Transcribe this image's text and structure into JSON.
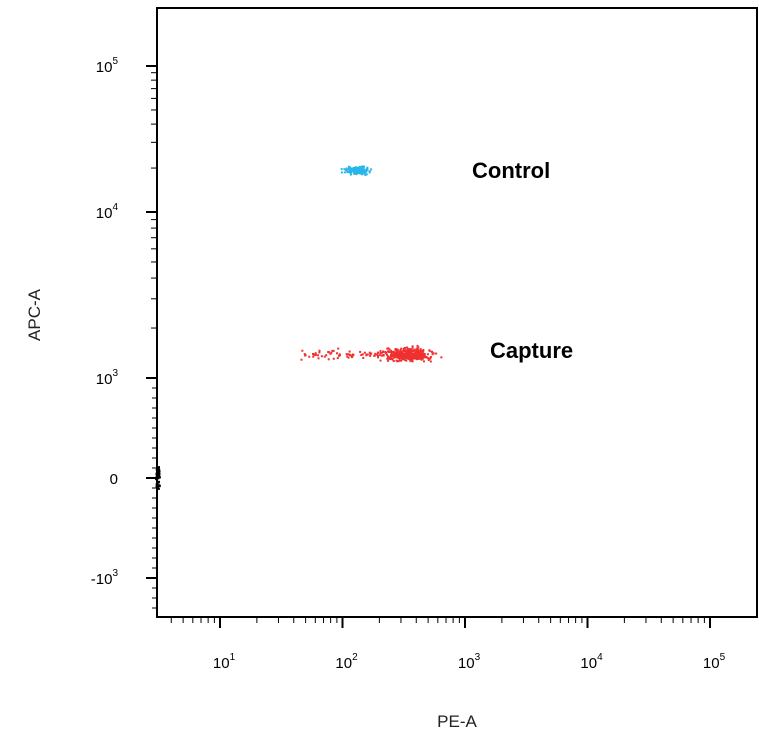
{
  "chart_data": {
    "type": "scatter",
    "title": "",
    "xlabel": "PE-A",
    "ylabel": "APC-A",
    "x_scale": "biexponential",
    "y_scale": "biexponential",
    "x_ticks": [
      {
        "base": "10",
        "exp": "1",
        "value": 10
      },
      {
        "base": "10",
        "exp": "2",
        "value": 100
      },
      {
        "base": "10",
        "exp": "3",
        "value": 1000
      },
      {
        "base": "10",
        "exp": "4",
        "value": 10000
      },
      {
        "base": "10",
        "exp": "5",
        "value": 100000
      }
    ],
    "y_ticks": [
      {
        "base": "10",
        "exp": "5",
        "value": 100000
      },
      {
        "base": "10",
        "exp": "4",
        "value": 10000
      },
      {
        "base": "10",
        "exp": "3",
        "value": 1000
      },
      {
        "base": "0",
        "exp": "",
        "value": 0
      },
      {
        "base": "-10",
        "exp": "3",
        "value": -1000
      }
    ],
    "series": [
      {
        "name": "Control",
        "color": "#29b6e8",
        "x_range": [
          55,
          220
        ],
        "x_center": 130,
        "y_center": 19500,
        "y_range": [
          17500,
          21500
        ],
        "n_points": 160
      },
      {
        "name": "Capture",
        "color": "#f03030",
        "x_range": [
          45,
          700
        ],
        "x_center": 330,
        "y_center": 1400,
        "y_range": [
          1200,
          1650
        ],
        "n_points": 480
      }
    ],
    "annotations": [
      {
        "text": "Control",
        "series": "Control"
      },
      {
        "text": "Capture",
        "series": "Capture"
      }
    ],
    "legend": "none",
    "grid": false
  }
}
